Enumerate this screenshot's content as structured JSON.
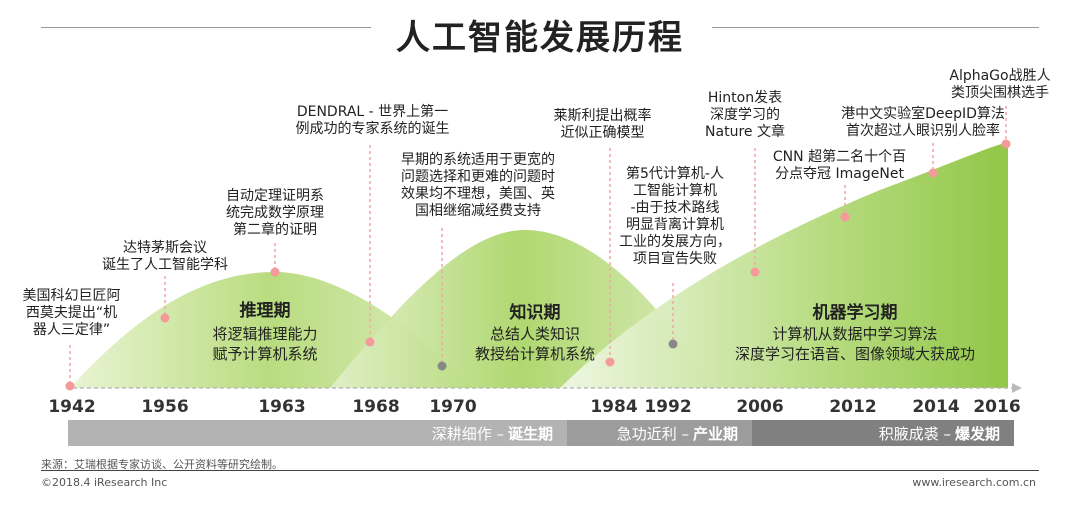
{
  "title": "人工智能发展历程",
  "colors": {
    "green_light": "#cfe6a8",
    "green": "#9ccd4e",
    "band1": "#b0b0b0",
    "band2": "#9a9a9a",
    "band3": "#7f7f7f",
    "marker": "#f2a6a6"
  },
  "phases": [
    {
      "name": "推理期",
      "desc": [
        "将逻辑推理能力",
        "赋予计算机系统"
      ]
    },
    {
      "name": "知识期",
      "desc": [
        "总结人类知识",
        "教授给计算机系统"
      ]
    },
    {
      "name": "机器学习期",
      "desc": [
        "计算机从数据中学习算法",
        "深度学习在语音、图像领域大获成功"
      ]
    }
  ],
  "events": {
    "e1942": [
      "美国科幻巨匠阿",
      "西莫夫提出“机",
      "器人三定律”"
    ],
    "e1956": [
      "达特茅斯会议",
      "诞生了人工智能学科"
    ],
    "e1963": [
      "自动定理证明系",
      "统完成数学原理",
      "第二章的证明"
    ],
    "e1968": [
      "DENDRAL - 世界上第一",
      "例成功的专家系统的诞生"
    ],
    "e1970": [
      "早期的系统适用于更宽的",
      "问题选择和更难的问题时",
      "效果均不理想，美国、英",
      "国相继缩减经费支持"
    ],
    "e1984": [
      "莱斯利提出概率",
      "近似正确模型"
    ],
    "e1992": [
      "第5代计算机-人",
      "工智能计算机",
      "-由于技术路线",
      "明显背离计算机",
      "工业的发展方向，",
      "项目宣告失败"
    ],
    "e2006": [
      "Hinton发表",
      "深度学习的",
      "Nature 文章"
    ],
    "e2012": [
      "CNN 超第二名十个百",
      "分点夺冠 ImageNet"
    ],
    "e2014": [
      "港中文实验室DeepID算法",
      "首次超过人眼识别人脸率"
    ],
    "e2016": [
      "AlphaGo战胜人",
      "类顶尖围棋选手"
    ]
  },
  "years": [
    "1942",
    "1956",
    "1963",
    "1968",
    "1970",
    "1984",
    "1992",
    "2006",
    "2012",
    "2014",
    "2016"
  ],
  "bands": [
    {
      "light": "深耕细作 –",
      "bold": "诞生期"
    },
    {
      "light": "急功近利 –",
      "bold": "产业期"
    },
    {
      "light": "积腋成裘 –",
      "bold": "爆发期"
    }
  ],
  "source": "来源：艾瑞根据专家访谈、公开资料等研究绘制。",
  "copyright": "©2018.4 iResearch Inc",
  "website": "www.iresearch.com.cn"
}
